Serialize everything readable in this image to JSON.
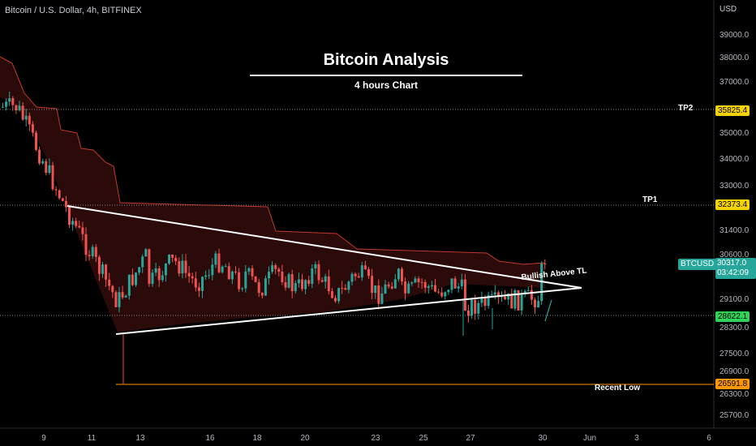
{
  "header": {
    "symbol_line": "Bitcoin / U.S. Dollar, 4h, BITFINEX"
  },
  "title": {
    "main": "Bitcoin  Analysis",
    "sub": "4 hours Chart"
  },
  "axis": {
    "unit": "USD",
    "y_ticks": [
      "39000.0",
      "38000.0",
      "37000.0",
      "35000.0",
      "34000.0",
      "33000.0",
      "31400.0",
      "30600.0",
      "29100.0",
      "28300.0",
      "27500.0",
      "26900.0",
      "26300.0",
      "25700.0"
    ],
    "x_ticks": [
      "9",
      "11",
      "13",
      "16",
      "18",
      "20",
      "23",
      "25",
      "27",
      "30",
      "Jun",
      "3",
      "6"
    ]
  },
  "levels": [
    {
      "label": "TP2",
      "price": 35825.4,
      "price_text": "35825.4",
      "color": "#f5d300"
    },
    {
      "label": "TP1",
      "price": 32373.4,
      "price_text": "32373.4",
      "color": "#f5d300"
    },
    {
      "label": "",
      "price": 28622.1,
      "price_text": "28622.1",
      "color": "#2fd35a"
    },
    {
      "label": "Recent Low",
      "price": 26591.8,
      "price_text": "26591.8",
      "color": "#ff9800"
    }
  ],
  "current": {
    "symbol": "BTCUSD",
    "price_text": "30317.0",
    "countdown": "03:42:09"
  },
  "annotation": {
    "text": "Bullish Above TL"
  },
  "colors": {
    "up": "#26a69a",
    "down": "#ef5350",
    "cloud": "#3a0d0d",
    "cloud_line": "#c0392b",
    "trendline": "#ffffff",
    "tp_line": "#888888",
    "low_line": "#ff9800"
  },
  "chart_data": {
    "type": "candlestick",
    "title": "Bitcoin  Analysis",
    "subtitle": "4 hours Chart",
    "ylabel": "USD",
    "ylim": [
      25300,
      39600
    ],
    "x_labels": [
      "9",
      "11",
      "13",
      "16",
      "18",
      "20",
      "23",
      "25",
      "27",
      "30",
      "Jun",
      "3",
      "6"
    ],
    "trendlines": [
      {
        "name": "upper",
        "points": [
          [
            10.5,
            32250
          ],
          [
            31.2,
            29300
          ]
        ]
      },
      {
        "name": "lower",
        "points": [
          [
            11.9,
            28100
          ],
          [
            31.2,
            29300
          ]
        ]
      }
    ],
    "horizontal_levels": [
      35825.4,
      32373.4,
      28622.1,
      26591.8
    ],
    "last_price": 30317.0
  }
}
